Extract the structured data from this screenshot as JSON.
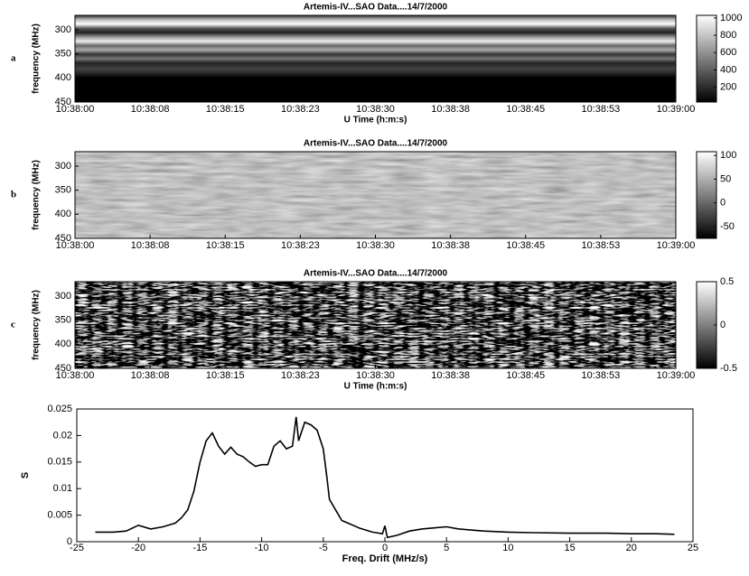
{
  "chart_data": [
    {
      "type": "heatmap",
      "panel_label": "a",
      "title": "Artemis-IV...SAO   Data....14/7/2000",
      "ylabel": "frequency (MHz)",
      "xlabel": "U Time (h:m:s)",
      "xticks": [
        "10:38:00",
        "10:38:08",
        "10:38:15",
        "10:38:23",
        "10:38:30",
        "10:38:38",
        "10:38:45",
        "10:38:53",
        "10:39:00"
      ],
      "ylim": [
        270,
        450
      ],
      "yticks": [
        300,
        350,
        400,
        450
      ],
      "y_inverted": true,
      "clim": [
        30,
        1030
      ],
      "cticks": [
        200,
        400,
        600,
        800,
        1000
      ],
      "colormap": "gray"
    },
    {
      "type": "heatmap",
      "panel_label": "b",
      "title": "Artemis-IV...SAO   Data....14/7/2000",
      "ylabel": "frequency (MHz)",
      "xticks": [
        "10:38:00",
        "10:38:08",
        "10:38:15",
        "10:38:23",
        "10:38:30",
        "10:38:38",
        "10:38:45",
        "10:38:53",
        "10:39:00"
      ],
      "ylim": [
        270,
        450
      ],
      "yticks": [
        300,
        350,
        400,
        450
      ],
      "y_inverted": true,
      "clim": [
        -75,
        108
      ],
      "cticks": [
        -50,
        0,
        50,
        100
      ],
      "colormap": "gray"
    },
    {
      "type": "heatmap",
      "panel_label": "c",
      "title": "Artemis-IV...SAO   Data....14/7/2000",
      "ylabel": "frequency (MHz)",
      "xlabel": "U Time (h:m:s)",
      "xticks": [
        "10:38:00",
        "10:38:08",
        "10:38:15",
        "10:38:23",
        "10:38:30",
        "10:38:38",
        "10:38:45",
        "10:38:53",
        "10:39:00"
      ],
      "ylim": [
        270,
        450
      ],
      "yticks": [
        300,
        350,
        400,
        450
      ],
      "y_inverted": true,
      "clim": [
        -0.5,
        0.5
      ],
      "cticks": [
        -0.5,
        0,
        0.5
      ],
      "colormap": "gray"
    },
    {
      "type": "line",
      "xlabel": "Freq. Drift (MHz/s)",
      "ylabel": "S",
      "xlim": [
        -25,
        25
      ],
      "xticks": [
        -25,
        -20,
        -15,
        -10,
        -5,
        0,
        5,
        10,
        15,
        20,
        25
      ],
      "ylim": [
        0,
        0.025
      ],
      "yticks": [
        0,
        0.005,
        0.01,
        0.015,
        0.02,
        0.025
      ],
      "series": [
        {
          "color": "#000000",
          "x": [
            -23.5,
            -22,
            -21,
            -20,
            -19,
            -18,
            -17,
            -16.5,
            -16,
            -15.5,
            -15,
            -14.5,
            -14,
            -13.5,
            -13,
            -12.5,
            -12,
            -11.5,
            -11,
            -10.5,
            -10,
            -9.5,
            -9,
            -8.5,
            -8,
            -7.5,
            -7.2,
            -7,
            -6.5,
            -6,
            -5.5,
            -5,
            -4.7,
            -4.5,
            -4,
            -3.5,
            -3,
            -2,
            -1,
            -0.2,
            0,
            0.2,
            1,
            2,
            3,
            4,
            5,
            6,
            7,
            8,
            10,
            12,
            15,
            18,
            20,
            22,
            23.5
          ],
          "values": [
            0.0018,
            0.0018,
            0.002,
            0.0031,
            0.0024,
            0.0028,
            0.0035,
            0.0045,
            0.006,
            0.0095,
            0.015,
            0.019,
            0.0205,
            0.018,
            0.0165,
            0.0178,
            0.0165,
            0.016,
            0.015,
            0.0142,
            0.0145,
            0.0145,
            0.018,
            0.019,
            0.0175,
            0.018,
            0.0235,
            0.019,
            0.0225,
            0.022,
            0.021,
            0.0175,
            0.012,
            0.008,
            0.006,
            0.004,
            0.0035,
            0.0025,
            0.0018,
            0.0015,
            0.003,
            0.0008,
            0.0012,
            0.002,
            0.0024,
            0.0026,
            0.0028,
            0.0024,
            0.0022,
            0.002,
            0.0018,
            0.0017,
            0.0016,
            0.0016,
            0.0015,
            0.0015,
            0.0014
          ]
        }
      ]
    }
  ]
}
